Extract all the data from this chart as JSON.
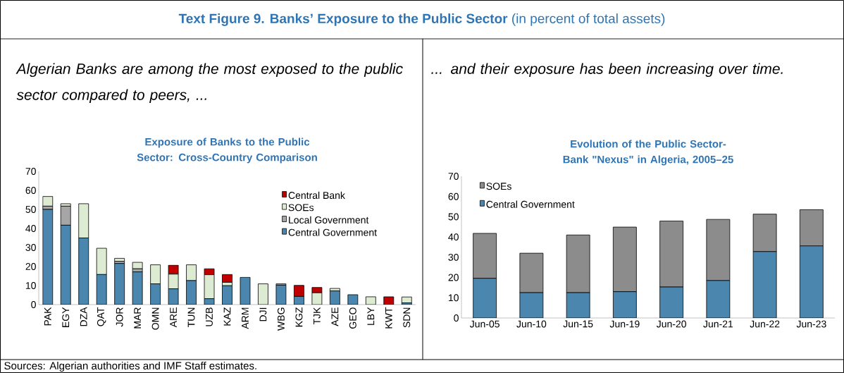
{
  "chart_data": [
    {
      "type": "other",
      "title": "**Text Figure 9. Banks’ Exposure to the Public Sector** (in percent of total assets)",
      "annotations": [
        "Sources: Algerian authorities and IMF Staff estimates."
      ]
    },
    {
      "type": "bar",
      "stacked": true,
      "title": "Exposure of Banks to the Public Sector: Cross-Country Comparison",
      "subtitle": "Algerian Banks are among the most exposed to the public sector compared to peers, ...",
      "categories": [
        "PAK",
        "EGY",
        "DZA",
        "QAT",
        "JOR",
        "MAR",
        "OMN",
        "ARE",
        "TUN",
        "UZB",
        "KAZ",
        "ARM",
        "DJI",
        "WBG",
        "KGZ",
        "TJK",
        "AZE",
        "GEO",
        "LBY",
        "KWT",
        "SDN"
      ],
      "series": [
        {
          "name": "Central Government",
          "color": "#4a86ae",
          "values": [
            50,
            41.7,
            35,
            15.8,
            21.6,
            17.2,
            10.9,
            8.3,
            12.6,
            3.1,
            9.9,
            14.3,
            0,
            10.2,
            4.3,
            0,
            7.2,
            5.2,
            0,
            0,
            0.9
          ]
        },
        {
          "name": "Local Government",
          "color": "#a6a6a6",
          "values": [
            1.7,
            10,
            0,
            0,
            1.1,
            1.6,
            0,
            0,
            0,
            0,
            0,
            0,
            0,
            0.7,
            0,
            0,
            0,
            null,
            0,
            0,
            0
          ]
        },
        {
          "name": "SOEs",
          "color": "#dcebd2",
          "values": [
            5.1,
            1.3,
            18,
            13.8,
            1.6,
            3.4,
            10,
            7.7,
            8.3,
            12.6,
            1.8,
            0,
            10.9,
            0,
            0,
            6.2,
            1.3,
            0,
            4.1,
            0,
            3.1
          ]
        },
        {
          "name": "Central Bank",
          "color": "#c00000",
          "values": [
            0,
            0,
            0,
            0,
            0,
            0,
            0,
            4.7,
            0,
            3.1,
            4.1,
            0,
            0,
            0,
            5.8,
            2.8,
            0,
            0,
            0,
            4.1,
            0
          ]
        }
      ],
      "ylim": [
        0,
        70
      ],
      "yticks": [
        0,
        10,
        20,
        30,
        40,
        50,
        60,
        70
      ],
      "legend": "top right"
    },
    {
      "type": "bar",
      "stacked": true,
      "title": "Evolution of the Public Sector-Bank \"Nexus\" in Algeria, 2005–25",
      "subtitle": "... and their exposure has been increasing over time.",
      "categories": [
        "Jun-05",
        "Jun-10",
        "Jun-15",
        "Jun-19",
        "Jun-20",
        "Jun-21",
        "Jun-22",
        "Jun-23"
      ],
      "series": [
        {
          "name": "Central Government",
          "color": "#4a86ae",
          "values": [
            19.6,
            12.5,
            12.5,
            13,
            15.3,
            18.5,
            32.8,
            35.6
          ]
        },
        {
          "name": "SOEs",
          "color": "#8c8c8c",
          "values": [
            22.2,
            19.5,
            28.5,
            31.9,
            32.6,
            30.2,
            18.5,
            17.9
          ]
        }
      ],
      "ylim": [
        0,
        70
      ],
      "yticks": [
        0,
        10,
        20,
        30,
        40,
        50,
        60,
        70
      ],
      "legend": "top left"
    }
  ]
}
